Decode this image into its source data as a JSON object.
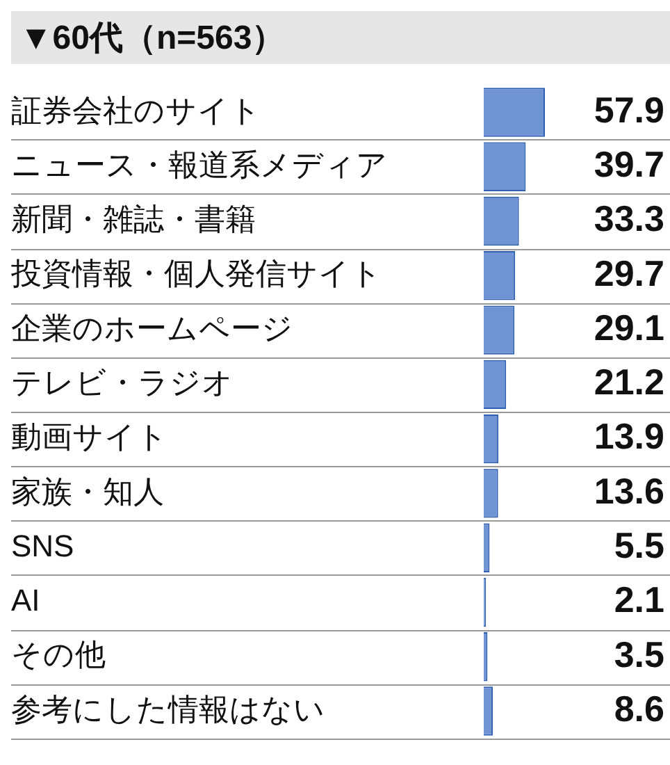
{
  "chart_data": {
    "type": "bar",
    "orientation": "horizontal",
    "title": "▼60代（n=563）",
    "categories": [
      "証券会社のサイト",
      "ニュース・報道系メディア",
      "新聞・雑誌・書籍",
      "投資情報・個人発信サイト",
      "企業のホームページ",
      "テレビ・ラジオ",
      "動画サイト",
      "家族・知人",
      "SNS",
      "AI",
      "その他",
      "参考にした情報はない"
    ],
    "values": [
      57.9,
      39.7,
      33.3,
      29.7,
      29.1,
      21.2,
      13.9,
      13.6,
      5.5,
      2.1,
      3.5,
      8.6
    ],
    "color": "#6f93d3",
    "data_labels": true,
    "grid": "y",
    "legend": false
  }
}
